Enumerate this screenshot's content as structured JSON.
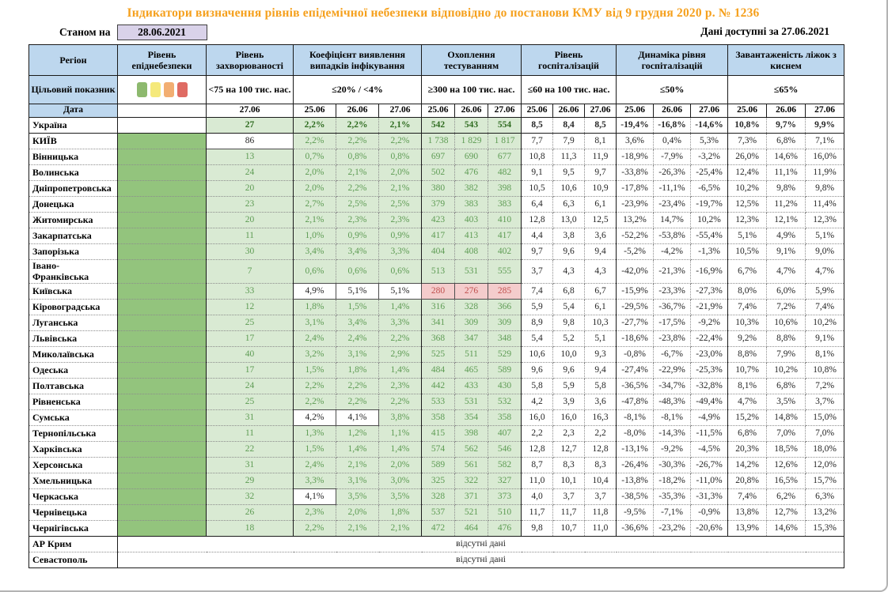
{
  "title": "Індикатори визначення рівнів епідемічної небезпеки відповідно до постанови КМУ від 9 грудня 2020 р. № 1236",
  "as_of_label": "Станом на",
  "as_of_date": "28.06.2021",
  "available_label": "Дані доступні за",
  "available_date": "27.06.2021",
  "colors": {
    "title_orange": "#F5A01D",
    "header_blue": "#BDD7EE",
    "epi_green": "#93C47D",
    "cell_light_green": "#D9EAD3",
    "green_text": "#5E9C54",
    "alert_pink": "#F4CCCC",
    "alert_red_text": "#C0504D",
    "date_box_lavender": "#D9D2E9"
  },
  "table": {
    "col1": {
      "header": "Регіон",
      "target_label": "Цільовий показник",
      "date_label": "Дата"
    },
    "no_data_text": "відсутні дані",
    "legend": [
      {
        "name": "green",
        "color": "#8DB96E"
      },
      {
        "name": "yellow",
        "color": "#F5E97B"
      },
      {
        "name": "orange",
        "color": "#F2AE72"
      },
      {
        "name": "red",
        "color": "#DF6B63"
      }
    ],
    "groups": [
      {
        "key": "epi",
        "label": "Рівень епіднебезпеки",
        "target": "",
        "span": 1,
        "dates": []
      },
      {
        "key": "inc",
        "label": "Рівень захворюваності",
        "target": "<75 на 100 тис. нас.",
        "span": 1,
        "dates": [
          "27.06"
        ]
      },
      {
        "key": "det",
        "label": "Коефіцієнт виявлення випадків інфікування",
        "target": "≤20% / <4%",
        "span": 3,
        "dates": [
          "25.06",
          "26.06",
          "27.06"
        ]
      },
      {
        "key": "test",
        "label": "Охоплення тестуванням",
        "target": "≥300 на 100 тис. нас.",
        "span": 3,
        "dates": [
          "25.06",
          "26.06",
          "27.06"
        ]
      },
      {
        "key": "hosp",
        "label": "Рівень госпіталізацій",
        "target": "≤60 на 100 тис. нас.",
        "span": 3,
        "dates": [
          "25.06",
          "26.06",
          "27.06"
        ]
      },
      {
        "key": "dyn",
        "label": "Динаміка рівня госпіталізацій",
        "target": "≤50%",
        "span": 3,
        "dates": [
          "25.06",
          "26.06",
          "27.06"
        ]
      },
      {
        "key": "load",
        "label": "Завантаженість ліжок з киснем",
        "target": "≤65%",
        "span": 3,
        "dates": [
          "25.06",
          "26.06",
          "27.06"
        ]
      }
    ],
    "rows": [
      {
        "region": "Україна",
        "total": true,
        "epi": "white",
        "inc": "27",
        "det": [
          "2,2%",
          "2,2%",
          "2,1%"
        ],
        "test": [
          "542",
          "543",
          "554"
        ],
        "hosp": [
          "8,5",
          "8,4",
          "8,5"
        ],
        "dyn": [
          "-19,4%",
          "-16,8%",
          "-14,6%"
        ],
        "load": [
          "10,8%",
          "9,7%",
          "9,9%"
        ]
      },
      {
        "region": "КИЇВ",
        "inc": "86",
        "inc_white": true,
        "det": [
          "2,2%",
          "2,2%",
          "2,2%"
        ],
        "test": [
          "1 738",
          "1 829",
          "1 817"
        ],
        "hosp": [
          "7,7",
          "7,9",
          "8,1"
        ],
        "dyn": [
          "3,6%",
          "0,4%",
          "5,3%"
        ],
        "load": [
          "7,3%",
          "6,8%",
          "7,1%"
        ]
      },
      {
        "region": "Вінницька",
        "inc": "13",
        "det": [
          "0,7%",
          "0,8%",
          "0,8%"
        ],
        "test": [
          "697",
          "690",
          "677"
        ],
        "hosp": [
          "10,8",
          "11,3",
          "11,9"
        ],
        "dyn": [
          "-18,9%",
          "-7,9%",
          "-3,2%"
        ],
        "load": [
          "26,0%",
          "14,6%",
          "16,0%"
        ]
      },
      {
        "region": "Волинська",
        "inc": "24",
        "det": [
          "2,0%",
          "2,1%",
          "2,0%"
        ],
        "test": [
          "502",
          "476",
          "482"
        ],
        "hosp": [
          "9,1",
          "9,5",
          "9,7"
        ],
        "dyn": [
          "-33,8%",
          "-26,3%",
          "-25,4%"
        ],
        "load": [
          "12,4%",
          "11,1%",
          "11,9%"
        ]
      },
      {
        "region": "Дніпропетровська",
        "inc": "20",
        "det": [
          "2,0%",
          "2,2%",
          "2,1%"
        ],
        "test": [
          "380",
          "382",
          "398"
        ],
        "hosp": [
          "10,5",
          "10,6",
          "10,9"
        ],
        "dyn": [
          "-17,8%",
          "-11,1%",
          "-6,5%"
        ],
        "load": [
          "10,2%",
          "9,8%",
          "9,8%"
        ]
      },
      {
        "region": "Донецька",
        "inc": "23",
        "det": [
          "2,7%",
          "2,5%",
          "2,5%"
        ],
        "test": [
          "379",
          "383",
          "383"
        ],
        "hosp": [
          "6,4",
          "6,3",
          "6,1"
        ],
        "dyn": [
          "-23,9%",
          "-23,4%",
          "-19,7%"
        ],
        "load": [
          "12,5%",
          "11,2%",
          "11,4%"
        ]
      },
      {
        "region": "Житомирська",
        "inc": "20",
        "det": [
          "2,1%",
          "2,3%",
          "2,3%"
        ],
        "test": [
          "423",
          "403",
          "410"
        ],
        "hosp": [
          "12,8",
          "13,0",
          "12,5"
        ],
        "dyn": [
          "13,2%",
          "14,7%",
          "10,2%"
        ],
        "load": [
          "12,3%",
          "12,1%",
          "12,3%"
        ]
      },
      {
        "region": "Закарпатська",
        "inc": "11",
        "det": [
          "1,0%",
          "0,9%",
          "0,9%"
        ],
        "test": [
          "417",
          "413",
          "417"
        ],
        "hosp": [
          "4,4",
          "3,8",
          "3,6"
        ],
        "dyn": [
          "-52,2%",
          "-53,8%",
          "-55,4%"
        ],
        "load": [
          "5,1%",
          "4,9%",
          "5,1%"
        ]
      },
      {
        "region": "Запорізька",
        "inc": "30",
        "det": [
          "3,4%",
          "3,4%",
          "3,3%"
        ],
        "test": [
          "404",
          "408",
          "402"
        ],
        "hosp": [
          "9,7",
          "9,6",
          "9,4"
        ],
        "dyn": [
          "-5,2%",
          "-4,2%",
          "-1,3%"
        ],
        "load": [
          "10,5%",
          "9,1%",
          "9,0%"
        ]
      },
      {
        "region": "Івано-\nФранківська",
        "inc": "7",
        "det": [
          "0,6%",
          "0,6%",
          "0,6%"
        ],
        "test": [
          "513",
          "531",
          "555"
        ],
        "hosp": [
          "3,7",
          "4,3",
          "4,3"
        ],
        "dyn": [
          "-42,0%",
          "-21,3%",
          "-16,9%"
        ],
        "load": [
          "6,7%",
          "4,7%",
          "4,7%"
        ]
      },
      {
        "region": "Київська",
        "inc": "33",
        "det": [
          "4,9%",
          "5,1%",
          "5,1%"
        ],
        "det_white": [
          0,
          1,
          2
        ],
        "test": [
          "280",
          "276",
          "285"
        ],
        "test_pink": [
          0,
          1,
          2
        ],
        "hosp": [
          "7,4",
          "6,8",
          "6,7"
        ],
        "dyn": [
          "-15,9%",
          "-23,3%",
          "-27,3%"
        ],
        "load": [
          "8,0%",
          "6,0%",
          "5,9%"
        ]
      },
      {
        "region": "Кіровоградська",
        "inc": "12",
        "det": [
          "1,8%",
          "1,5%",
          "1,4%"
        ],
        "test": [
          "316",
          "328",
          "366"
        ],
        "hosp": [
          "5,9",
          "5,4",
          "6,1"
        ],
        "dyn": [
          "-29,5%",
          "-36,7%",
          "-21,9%"
        ],
        "load": [
          "7,4%",
          "7,2%",
          "7,4%"
        ]
      },
      {
        "region": "Луганська",
        "inc": "25",
        "det": [
          "3,1%",
          "3,4%",
          "3,3%"
        ],
        "test": [
          "341",
          "309",
          "309"
        ],
        "hosp": [
          "8,9",
          "9,8",
          "10,3"
        ],
        "dyn": [
          "-27,7%",
          "-17,5%",
          "-9,2%"
        ],
        "load": [
          "10,3%",
          "10,6%",
          "10,2%"
        ]
      },
      {
        "region": "Львівська",
        "inc": "17",
        "det": [
          "2,4%",
          "2,4%",
          "2,2%"
        ],
        "test": [
          "368",
          "347",
          "348"
        ],
        "hosp": [
          "5,4",
          "5,2",
          "5,1"
        ],
        "dyn": [
          "-18,6%",
          "-23,8%",
          "-22,4%"
        ],
        "load": [
          "9,2%",
          "8,8%",
          "9,1%"
        ]
      },
      {
        "region": "Миколаївська",
        "inc": "40",
        "det": [
          "3,2%",
          "3,1%",
          "2,9%"
        ],
        "test": [
          "525",
          "511",
          "529"
        ],
        "hosp": [
          "10,6",
          "10,0",
          "9,3"
        ],
        "dyn": [
          "-0,8%",
          "-6,7%",
          "-23,0%"
        ],
        "load": [
          "8,8%",
          "7,9%",
          "8,1%"
        ]
      },
      {
        "region": "Одеська",
        "inc": "17",
        "det": [
          "1,5%",
          "1,8%",
          "1,4%"
        ],
        "test": [
          "484",
          "465",
          "589"
        ],
        "hosp": [
          "9,6",
          "9,6",
          "9,4"
        ],
        "dyn": [
          "-27,4%",
          "-22,9%",
          "-25,3%"
        ],
        "load": [
          "10,7%",
          "10,2%",
          "10,8%"
        ]
      },
      {
        "region": "Полтавська",
        "inc": "24",
        "det": [
          "2,2%",
          "2,2%",
          "2,3%"
        ],
        "test": [
          "442",
          "433",
          "430"
        ],
        "hosp": [
          "5,8",
          "5,9",
          "5,8"
        ],
        "dyn": [
          "-36,5%",
          "-34,7%",
          "-32,8%"
        ],
        "load": [
          "8,1%",
          "6,8%",
          "7,2%"
        ]
      },
      {
        "region": "Рівненська",
        "inc": "25",
        "det": [
          "2,2%",
          "2,2%",
          "2,2%"
        ],
        "test": [
          "533",
          "531",
          "532"
        ],
        "hosp": [
          "4,2",
          "3,9",
          "3,6"
        ],
        "dyn": [
          "-47,8%",
          "-48,3%",
          "-49,4%"
        ],
        "load": [
          "4,7%",
          "3,5%",
          "3,7%"
        ]
      },
      {
        "region": "Сумська",
        "inc": "31",
        "det": [
          "4,2%",
          "4,1%",
          "3,8%"
        ],
        "det_white": [
          0,
          1
        ],
        "test": [
          "358",
          "354",
          "358"
        ],
        "hosp": [
          "16,0",
          "16,0",
          "16,3"
        ],
        "dyn": [
          "-8,1%",
          "-8,1%",
          "-4,9%"
        ],
        "load": [
          "15,2%",
          "14,8%",
          "15,0%"
        ]
      },
      {
        "region": "Тернопільська",
        "inc": "11",
        "det": [
          "1,3%",
          "1,2%",
          "1,1%"
        ],
        "test": [
          "415",
          "398",
          "407"
        ],
        "hosp": [
          "2,2",
          "2,3",
          "2,2"
        ],
        "dyn": [
          "-8,0%",
          "-14,3%",
          "-11,5%"
        ],
        "load": [
          "6,8%",
          "7,0%",
          "7,0%"
        ]
      },
      {
        "region": "Харківська",
        "inc": "22",
        "det": [
          "1,5%",
          "1,4%",
          "1,4%"
        ],
        "test": [
          "574",
          "562",
          "546"
        ],
        "hosp": [
          "12,8",
          "12,7",
          "12,8"
        ],
        "dyn": [
          "-13,1%",
          "-9,2%",
          "-4,5%"
        ],
        "load": [
          "20,3%",
          "18,5%",
          "18,0%"
        ]
      },
      {
        "region": "Херсонська",
        "inc": "31",
        "det": [
          "2,4%",
          "2,1%",
          "2,0%"
        ],
        "test": [
          "589",
          "561",
          "582"
        ],
        "hosp": [
          "8,7",
          "8,3",
          "8,3"
        ],
        "dyn": [
          "-26,4%",
          "-30,3%",
          "-26,7%"
        ],
        "load": [
          "14,2%",
          "12,6%",
          "12,0%"
        ]
      },
      {
        "region": "Хмельницька",
        "inc": "29",
        "det": [
          "3,3%",
          "3,1%",
          "3,0%"
        ],
        "test": [
          "325",
          "322",
          "327"
        ],
        "hosp": [
          "11,0",
          "10,1",
          "10,4"
        ],
        "dyn": [
          "-13,8%",
          "-18,2%",
          "-11,0%"
        ],
        "load": [
          "20,8%",
          "16,5%",
          "15,7%"
        ]
      },
      {
        "region": "Черкаська",
        "inc": "32",
        "det": [
          "4,1%",
          "3,5%",
          "3,5%"
        ],
        "det_white": [
          0
        ],
        "test": [
          "328",
          "371",
          "373"
        ],
        "hosp": [
          "4,0",
          "3,7",
          "3,7"
        ],
        "dyn": [
          "-38,5%",
          "-35,3%",
          "-31,3%"
        ],
        "load": [
          "7,4%",
          "6,2%",
          "6,3%"
        ]
      },
      {
        "region": "Чернівецька",
        "inc": "26",
        "det": [
          "2,3%",
          "2,0%",
          "1,8%"
        ],
        "test": [
          "537",
          "521",
          "510"
        ],
        "hosp": [
          "11,7",
          "11,7",
          "11,8"
        ],
        "dyn": [
          "-9,5%",
          "-7,1%",
          "-0,9%"
        ],
        "load": [
          "13,8%",
          "12,7%",
          "13,2%"
        ]
      },
      {
        "region": "Чернігівська",
        "inc": "18",
        "det": [
          "2,2%",
          "2,1%",
          "2,1%"
        ],
        "test": [
          "472",
          "464",
          "476"
        ],
        "hosp": [
          "9,8",
          "10,7",
          "11,0"
        ],
        "dyn": [
          "-36,6%",
          "-23,2%",
          "-20,6%"
        ],
        "load": [
          "13,9%",
          "14,6%",
          "15,3%"
        ]
      },
      {
        "region": "АР Крим",
        "no_data": true
      },
      {
        "region": "Севастополь",
        "no_data": true
      }
    ]
  }
}
